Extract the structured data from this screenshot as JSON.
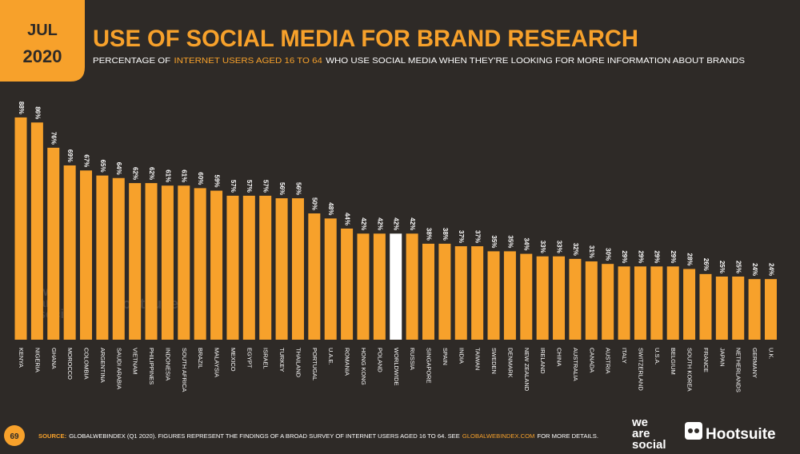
{
  "badge": {
    "month": "JUL",
    "year": "2020"
  },
  "chart_data": {
    "type": "bar",
    "title": "USE OF SOCIAL MEDIA FOR BRAND RESEARCH",
    "subtitle": [
      "PERCENTAGE OF",
      "INTERNET USERS AGED 16 TO 64",
      "WHO USE SOCIAL MEDIA WHEN THEY'RE LOOKING FOR MORE INFORMATION ABOUT BRANDS"
    ],
    "categories": [
      "KENYA",
      "NIGERIA",
      "GHANA",
      "MOROCCO",
      "COLOMBIA",
      "ARGENTINA",
      "SAUDI ARABIA",
      "VIETNAM",
      "PHILIPPINES",
      "INDONESIA",
      "SOUTH AFRICA",
      "BRAZIL",
      "MALAYSIA",
      "MEXICO",
      "EGYPT",
      "ISRAEL",
      "TURKEY",
      "THAILAND",
      "PORTUGAL",
      "U.A.E.",
      "ROMANIA",
      "HONG KONG",
      "POLAND",
      "WORLDWIDE",
      "RUSSIA",
      "SINGAPORE",
      "SPAIN",
      "INDIA",
      "TAIWAN",
      "SWEDEN",
      "DENMARK",
      "NEW ZEALAND",
      "IRELAND",
      "CHINA",
      "AUSTRALIA",
      "CANADA",
      "AUSTRIA",
      "ITALY",
      "SWITZERLAND",
      "U.S.A.",
      "BELGIUM",
      "SOUTH KOREA",
      "FRANCE",
      "JAPAN",
      "NETHERLANDS",
      "GERMANY",
      "U.K."
    ],
    "values": [
      88,
      86,
      76,
      69,
      67,
      65,
      64,
      62,
      62,
      61,
      61,
      60,
      59,
      57,
      57,
      57,
      56,
      56,
      50,
      48,
      44,
      42,
      42,
      42,
      42,
      38,
      38,
      37,
      37,
      35,
      35,
      34,
      33,
      33,
      32,
      31,
      30,
      29,
      29,
      29,
      29,
      28,
      26,
      25,
      25,
      24,
      24
    ],
    "value_labels": [
      "88%",
      "86%",
      "76%",
      "69%",
      "67%",
      "65%",
      "64%",
      "62%",
      "62%",
      "61%",
      "61%",
      "60%",
      "59%",
      "57%",
      "57%",
      "57%",
      "56%",
      "56%",
      "50%",
      "48%",
      "44%",
      "42%",
      "42%",
      "42%",
      "42%",
      "38%",
      "38%",
      "37%",
      "37%",
      "35%",
      "35%",
      "34%",
      "33%",
      "33%",
      "32%",
      "31%",
      "30%",
      "29%",
      "29%",
      "29%",
      "29%",
      "28%",
      "26%",
      "25%",
      "25%",
      "24%",
      "24%"
    ],
    "colors": [
      "#f7a12b",
      "#f7a12b",
      "#f7a12b",
      "#f7a12b",
      "#f7a12b",
      "#f7a12b",
      "#f7a12b",
      "#f7a12b",
      "#f7a12b",
      "#f7a12b",
      "#f7a12b",
      "#f7a12b",
      "#f7a12b",
      "#f7a12b",
      "#f7a12b",
      "#f7a12b",
      "#f7a12b",
      "#f7a12b",
      "#f7a12b",
      "#f7a12b",
      "#f7a12b",
      "#f7a12b",
      "#f7a12b",
      "#ffffff",
      "#f7a12b",
      "#f7a12b",
      "#f7a12b",
      "#f7a12b",
      "#f7a12b",
      "#f7a12b",
      "#f7a12b",
      "#f7a12b",
      "#f7a12b",
      "#f7a12b",
      "#f7a12b",
      "#f7a12b",
      "#f7a12b",
      "#f7a12b",
      "#f7a12b",
      "#f7a12b",
      "#f7a12b",
      "#f7a12b",
      "#f7a12b",
      "#f7a12b",
      "#f7a12b",
      "#f7a12b",
      "#f7a12b"
    ]
  },
  "footer": {
    "page_number": "69",
    "source": [
      "SOURCE:",
      "GLOBALWEBINDEX (Q1 2020). FIGURES REPRESENT THE FINDINGS OF A BROAD SURVEY OF INTERNET USERS AGED 16 TO 64. SEE",
      "GLOBALWEBINDEX.COM",
      "FOR MORE DETAILS."
    ],
    "logo_1": [
      "we",
      "are",
      "social"
    ],
    "logo_2": "Hootsuite"
  }
}
